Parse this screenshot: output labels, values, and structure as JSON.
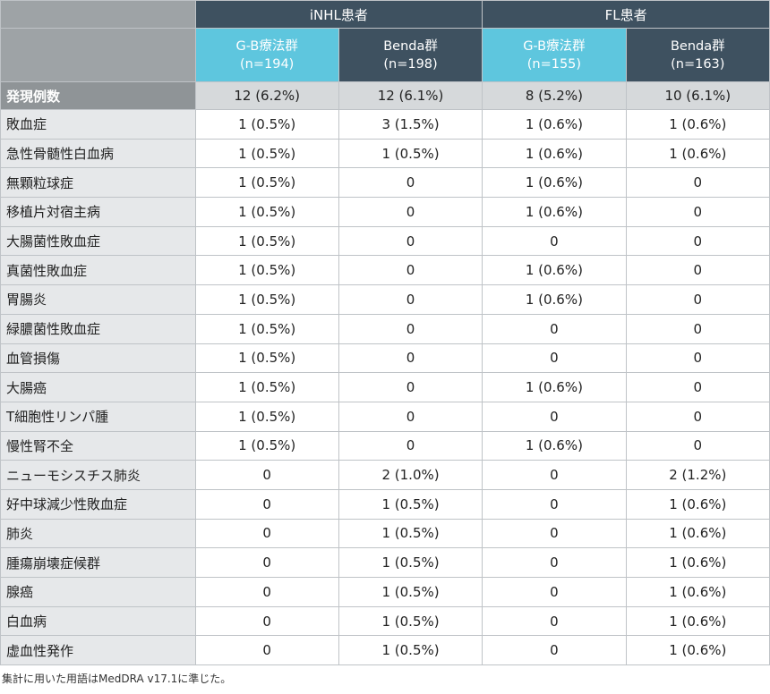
{
  "header": {
    "groups": [
      "iNHL患者",
      "FL患者"
    ],
    "columns": [
      {
        "name": "G-B療法群",
        "n": "(n=194)"
      },
      {
        "name": "Benda群",
        "n": "(n=198)"
      },
      {
        "name": "G-B療法群",
        "n": "(n=155)"
      },
      {
        "name": "Benda群",
        "n": "(n=163)"
      }
    ]
  },
  "total": {
    "label": "発現例数",
    "values": [
      "12 (6.2%)",
      "12 (6.1%)",
      "8 (5.2%)",
      "10 (6.1%)"
    ]
  },
  "rows": [
    {
      "label": "敗血症",
      "values": [
        "1 (0.5%)",
        "3 (1.5%)",
        "1 (0.6%)",
        "1 (0.6%)"
      ]
    },
    {
      "label": "急性骨髄性白血病",
      "values": [
        "1 (0.5%)",
        "1 (0.5%)",
        "1 (0.6%)",
        "1 (0.6%)"
      ]
    },
    {
      "label": "無顆粒球症",
      "values": [
        "1 (0.5%)",
        "0",
        "1 (0.6%)",
        "0"
      ]
    },
    {
      "label": "移植片対宿主病",
      "values": [
        "1 (0.5%)",
        "0",
        "1 (0.6%)",
        "0"
      ]
    },
    {
      "label": "大腸菌性敗血症",
      "values": [
        "1 (0.5%)",
        "0",
        "0",
        "0"
      ]
    },
    {
      "label": "真菌性敗血症",
      "values": [
        "1 (0.5%)",
        "0",
        "1 (0.6%)",
        "0"
      ]
    },
    {
      "label": "胃腸炎",
      "values": [
        "1 (0.5%)",
        "0",
        "1 (0.6%)",
        "0"
      ]
    },
    {
      "label": "緑膿菌性敗血症",
      "values": [
        "1 (0.5%)",
        "0",
        "0",
        "0"
      ]
    },
    {
      "label": "血管損傷",
      "values": [
        "1 (0.5%)",
        "0",
        "0",
        "0"
      ]
    },
    {
      "label": "大腸癌",
      "values": [
        "1 (0.5%)",
        "0",
        "1 (0.6%)",
        "0"
      ]
    },
    {
      "label": "T細胞性リンパ腫",
      "values": [
        "1 (0.5%)",
        "0",
        "0",
        "0"
      ]
    },
    {
      "label": "慢性腎不全",
      "values": [
        "1 (0.5%)",
        "0",
        "1 (0.6%)",
        "0"
      ]
    },
    {
      "label": "ニューモシスチス肺炎",
      "values": [
        "0",
        "2 (1.0%)",
        "0",
        "2 (1.2%)"
      ]
    },
    {
      "label": "好中球減少性敗血症",
      "values": [
        "0",
        "1 (0.5%)",
        "0",
        "1 (0.6%)"
      ]
    },
    {
      "label": "肺炎",
      "values": [
        "0",
        "1 (0.5%)",
        "0",
        "1 (0.6%)"
      ]
    },
    {
      "label": "腫瘍崩壊症候群",
      "values": [
        "0",
        "1 (0.5%)",
        "0",
        "1 (0.6%)"
      ]
    },
    {
      "label": "腺癌",
      "values": [
        "0",
        "1 (0.5%)",
        "0",
        "1 (0.6%)"
      ]
    },
    {
      "label": "白血病",
      "values": [
        "0",
        "1 (0.5%)",
        "0",
        "1 (0.6%)"
      ]
    },
    {
      "label": "虚血性発作",
      "values": [
        "0",
        "1 (0.5%)",
        "0",
        "1 (0.6%)"
      ]
    }
  ],
  "footnote": "集計に用いた用語はMedDRA v17.1に準じた。"
}
